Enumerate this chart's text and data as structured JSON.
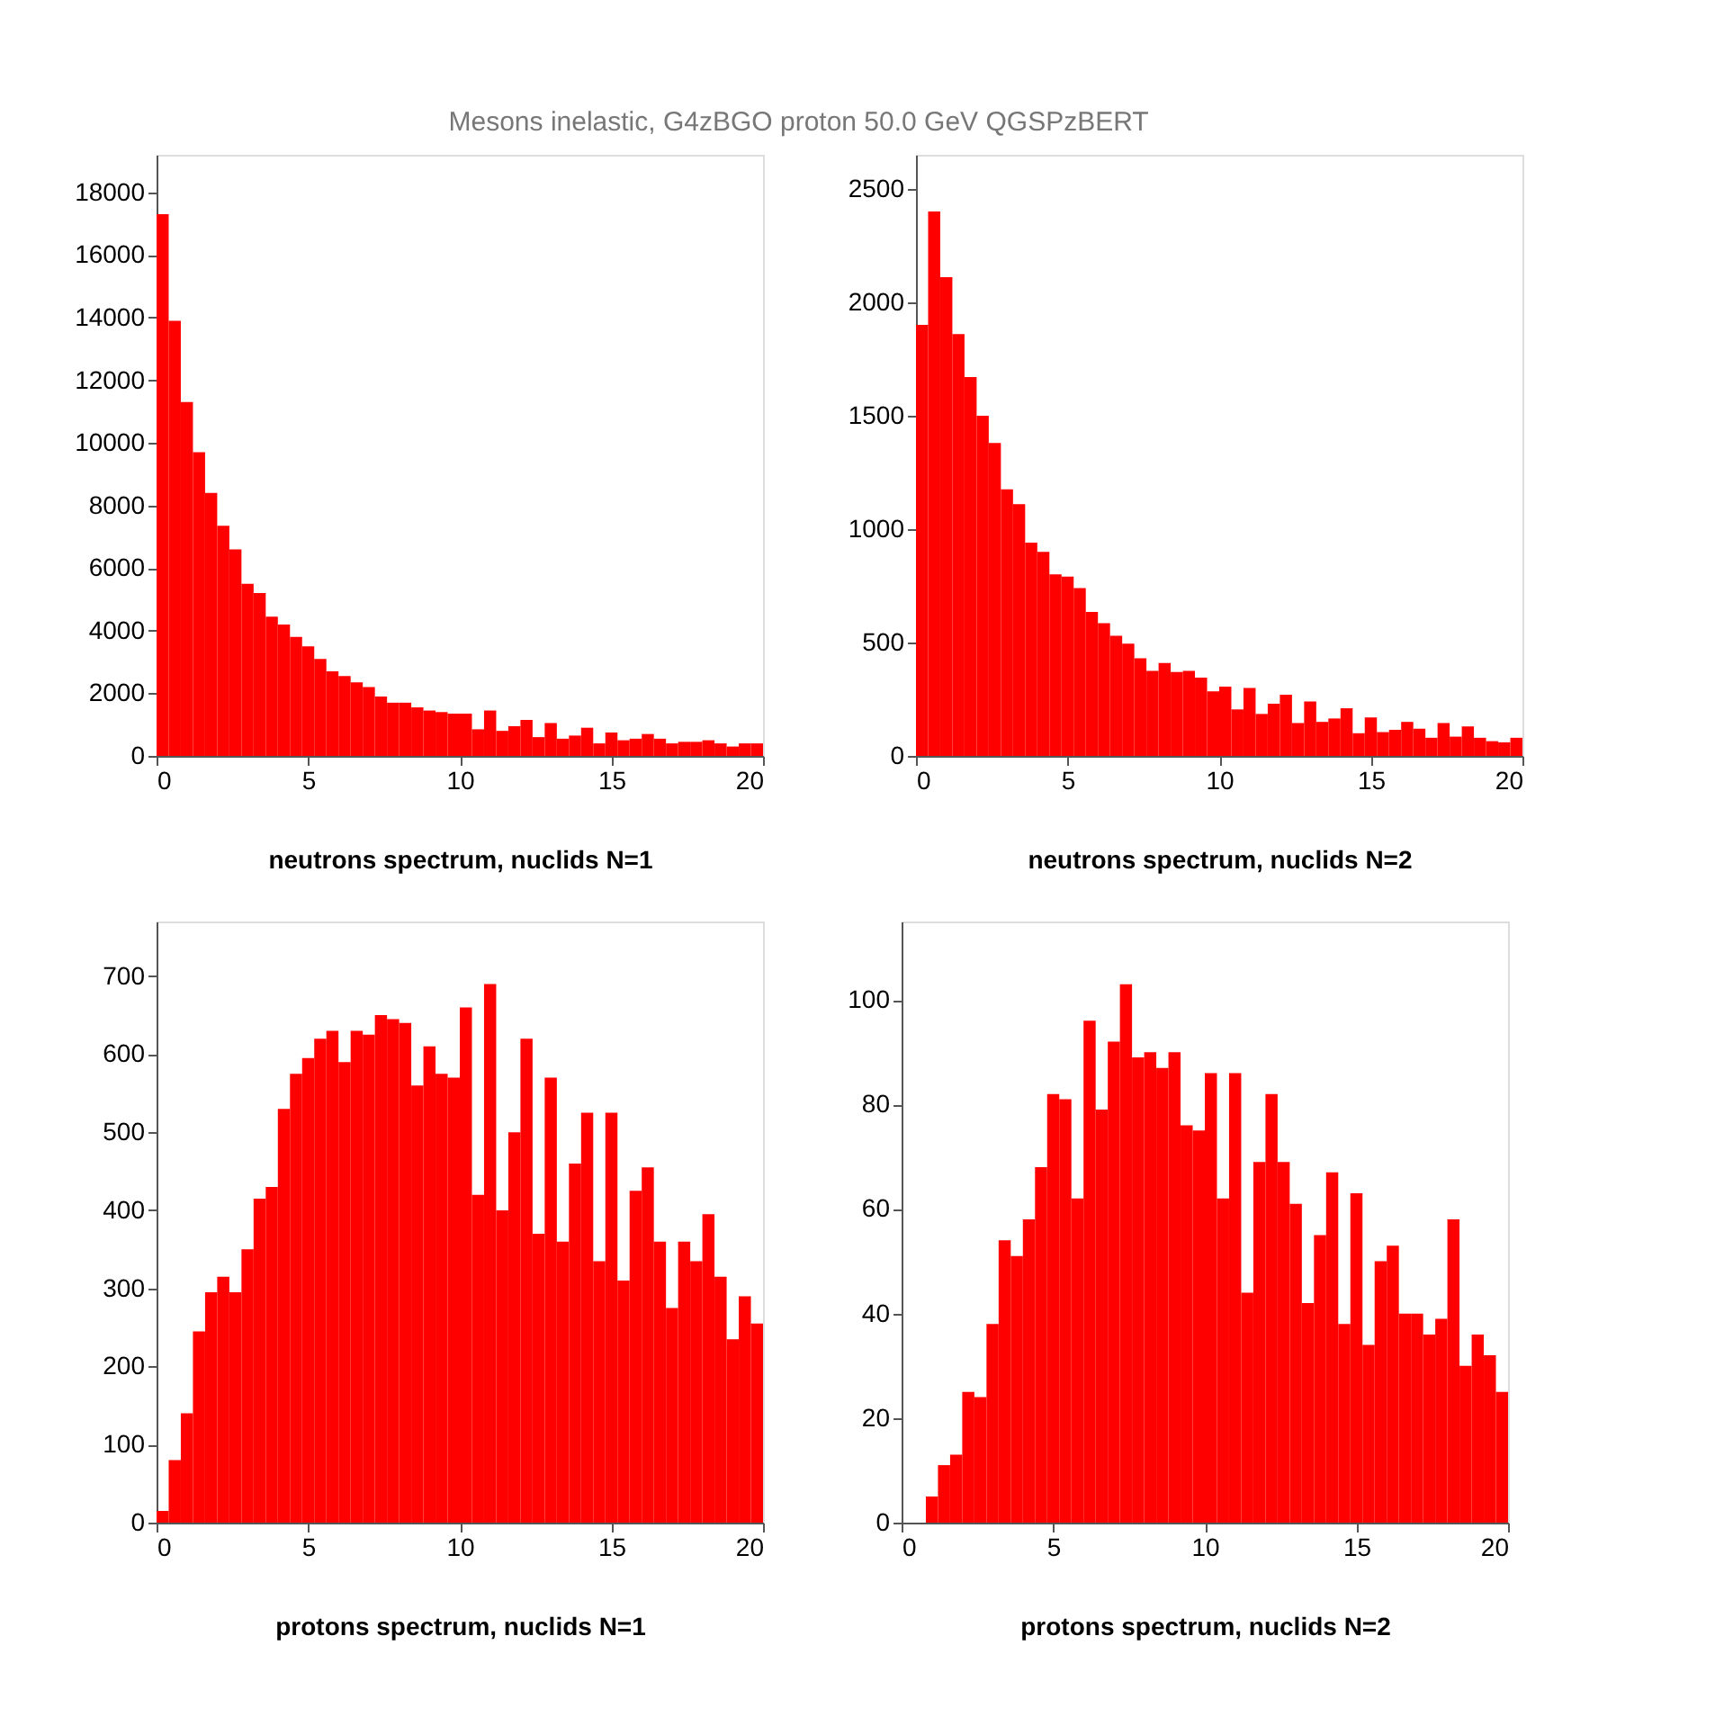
{
  "chart_data": [
    {
      "type": "histogram",
      "title": "Mesons inelastic,  G4zBGO proton 50.0 GeV QGSPzBERT",
      "xlabel": "neutrons spectrum, nuclids N=1",
      "bins": [
        0,
        0.4,
        0.8,
        1.2,
        1.6,
        2.0,
        2.4,
        2.8,
        3.2,
        3.6,
        4.0,
        4.4,
        4.8,
        5.2,
        5.6,
        6.0,
        6.4,
        6.8,
        7.2,
        7.6,
        8.0,
        8.4,
        8.8,
        9.2,
        9.6,
        10.0,
        10.4,
        10.8,
        11.2,
        11.6,
        12.0,
        12.4,
        12.8,
        13.2,
        13.6,
        14.0,
        14.4,
        14.8,
        15.2,
        15.6,
        16.0,
        16.4,
        16.8,
        17.2,
        17.6,
        18.0,
        18.4,
        18.8,
        19.2,
        19.6,
        20.0
      ],
      "values": [
        17300,
        13900,
        11300,
        9700,
        8400,
        7350,
        6600,
        5500,
        5200,
        4450,
        4200,
        3800,
        3500,
        3100,
        2700,
        2550,
        2350,
        2200,
        1900,
        1700,
        1700,
        1550,
        1450,
        1400,
        1350,
        1350,
        850,
        1450,
        800,
        950,
        1150,
        600,
        1050,
        550,
        650,
        900,
        400,
        750,
        500,
        550,
        700,
        550,
        400,
        450,
        450,
        500,
        400,
        300,
        400,
        400
      ],
      "color": "#ff0000",
      "xlim": [
        0,
        20
      ],
      "xticks": [
        0,
        5,
        10,
        15,
        20
      ],
      "ylim": [
        0,
        19200
      ],
      "yticks": [
        0,
        2000,
        4000,
        6000,
        8000,
        10000,
        12000,
        14000,
        16000,
        18000
      ],
      "grid": false
    },
    {
      "type": "histogram",
      "xlabel": "neutrons spectrum, nuclids N=2",
      "bins": [
        0,
        0.4,
        0.8,
        1.2,
        1.6,
        2.0,
        2.4,
        2.8,
        3.2,
        3.6,
        4.0,
        4.4,
        4.8,
        5.2,
        5.6,
        6.0,
        6.4,
        6.8,
        7.2,
        7.6,
        8.0,
        8.4,
        8.8,
        9.2,
        9.6,
        10.0,
        10.4,
        10.8,
        11.2,
        11.6,
        12.0,
        12.4,
        12.8,
        13.2,
        13.6,
        14.0,
        14.4,
        14.8,
        15.2,
        15.6,
        16.0,
        16.4,
        16.8,
        17.2,
        17.6,
        18.0,
        18.4,
        18.8,
        19.2,
        19.6,
        20.0
      ],
      "values": [
        1900,
        2400,
        2110,
        1860,
        1670,
        1500,
        1380,
        1175,
        1110,
        940,
        900,
        800,
        790,
        740,
        635,
        585,
        530,
        495,
        430,
        375,
        410,
        370,
        375,
        345,
        285,
        305,
        205,
        300,
        185,
        230,
        270,
        145,
        240,
        150,
        165,
        210,
        100,
        170,
        105,
        115,
        150,
        120,
        80,
        145,
        85,
        130,
        80,
        65,
        60,
        80
      ],
      "color": "#ff0000",
      "xlim": [
        0,
        20
      ],
      "xticks": [
        0,
        5,
        10,
        15,
        20
      ],
      "ylim": [
        0,
        2650
      ],
      "yticks": [
        0,
        500,
        1000,
        1500,
        2000,
        2500
      ],
      "grid": false
    },
    {
      "type": "histogram",
      "xlabel": "protons spectrum, nuclids N=1",
      "bins": [
        0,
        0.4,
        0.8,
        1.2,
        1.6,
        2.0,
        2.4,
        2.8,
        3.2,
        3.6,
        4.0,
        4.4,
        4.8,
        5.2,
        5.6,
        6.0,
        6.4,
        6.8,
        7.2,
        7.6,
        8.0,
        8.4,
        8.8,
        9.2,
        9.6,
        10.0,
        10.4,
        10.8,
        11.2,
        11.6,
        12.0,
        12.4,
        12.8,
        13.2,
        13.6,
        14.0,
        14.4,
        14.8,
        15.2,
        15.6,
        16.0,
        16.4,
        16.8,
        17.2,
        17.6,
        18.0,
        18.4,
        18.8,
        19.2,
        19.6,
        20.0
      ],
      "values": [
        15,
        80,
        140,
        245,
        295,
        315,
        295,
        350,
        415,
        430,
        530,
        575,
        595,
        620,
        630,
        590,
        630,
        625,
        650,
        645,
        640,
        560,
        610,
        575,
        570,
        660,
        420,
        690,
        400,
        500,
        620,
        370,
        570,
        360,
        460,
        525,
        335,
        525,
        310,
        425,
        455,
        360,
        275,
        360,
        335,
        395,
        315,
        235,
        290,
        255
      ],
      "color": "#ff0000",
      "xlim": [
        0,
        20
      ],
      "xticks": [
        0,
        5,
        10,
        15,
        20
      ],
      "ylim": [
        0,
        770
      ],
      "yticks": [
        0,
        100,
        200,
        300,
        400,
        500,
        600,
        700
      ],
      "grid": false
    },
    {
      "type": "histogram",
      "xlabel": "protons spectrum, nuclids N=2",
      "bins": [
        0,
        0.4,
        0.8,
        1.2,
        1.6,
        2.0,
        2.4,
        2.8,
        3.2,
        3.6,
        4.0,
        4.4,
        4.8,
        5.2,
        5.6,
        6.0,
        6.4,
        6.8,
        7.2,
        7.6,
        8.0,
        8.4,
        8.8,
        9.2,
        9.6,
        10.0,
        10.4,
        10.8,
        11.2,
        11.6,
        12.0,
        12.4,
        12.8,
        13.2,
        13.6,
        14.0,
        14.4,
        14.8,
        15.2,
        15.6,
        16.0,
        16.4,
        16.8,
        17.2,
        17.6,
        18.0,
        18.4,
        18.8,
        19.2,
        19.6,
        20.0
      ],
      "values": [
        0,
        0,
        5,
        11,
        13,
        25,
        24,
        38,
        54,
        51,
        58,
        68,
        82,
        81,
        62,
        96,
        79,
        92,
        103,
        89,
        90,
        87,
        90,
        76,
        75,
        86,
        62,
        86,
        44,
        69,
        82,
        69,
        61,
        42,
        55,
        67,
        38,
        63,
        34,
        50,
        53,
        40,
        40,
        36,
        39,
        58,
        30,
        36,
        32,
        25
      ],
      "color": "#ff0000",
      "xlim": [
        0,
        20
      ],
      "xticks": [
        0,
        5,
        10,
        15,
        20
      ],
      "ylim": [
        0,
        115
      ],
      "yticks": [
        0,
        20,
        40,
        60,
        80,
        100
      ],
      "grid": false
    }
  ]
}
